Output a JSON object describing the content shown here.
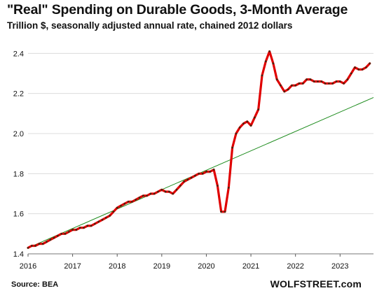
{
  "title": "\"Real\" Spending on Durable Goods, 3-Month Average",
  "subtitle": "Trillion $, seasonally adjusted annual rate, chained 2012 dollars",
  "source": "Source: BEA",
  "brand": "WOLFSTREET.com",
  "colors": {
    "series": "#e00000",
    "markers": "#3a2a10",
    "trend": "#1a8a1a",
    "grid": "#dcdcdc"
  },
  "chart_data": {
    "type": "line",
    "title": "\"Real\" Spending on Durable Goods, 3-Month Average",
    "subtitle": "Trillion $, seasonally adjusted annual rate, chained 2012 dollars",
    "xlabel": "",
    "ylabel": "",
    "xlim": [
      2016.0,
      2023.75
    ],
    "ylim": [
      1.4,
      2.45
    ],
    "x_ticks": [
      "2016",
      "2017",
      "2018",
      "2019",
      "2020",
      "2021",
      "2022",
      "2023"
    ],
    "y_ticks": [
      "1.4",
      "1.6",
      "1.8",
      "2.0",
      "2.2",
      "2.4"
    ],
    "grid": "horizontal",
    "x_start": "2016-01",
    "x_step": "month",
    "series": [
      {
        "values": [
          1.43,
          1.44,
          1.44,
          1.45,
          1.45,
          1.46,
          1.47,
          1.48,
          1.49,
          1.5,
          1.5,
          1.51,
          1.52,
          1.52,
          1.53,
          1.53,
          1.54,
          1.54,
          1.55,
          1.56,
          1.57,
          1.58,
          1.59,
          1.61,
          1.63,
          1.64,
          1.65,
          1.66,
          1.66,
          1.67,
          1.68,
          1.69,
          1.69,
          1.7,
          1.7,
          1.71,
          1.72,
          1.71,
          1.71,
          1.7,
          1.72,
          1.74,
          1.76,
          1.77,
          1.78,
          1.79,
          1.8,
          1.8,
          1.81,
          1.81,
          1.82,
          1.74,
          1.61,
          1.61,
          1.73,
          1.93,
          2.0,
          2.03,
          2.05,
          2.06,
          2.04,
          2.08,
          2.12,
          2.29,
          2.36,
          2.41,
          2.35,
          2.27,
          2.24,
          2.21,
          2.22,
          2.24,
          2.24,
          2.25,
          2.25,
          2.27,
          2.27,
          2.26,
          2.26,
          2.26,
          2.25,
          2.25,
          2.25,
          2.26,
          2.26,
          2.25,
          2.27,
          2.3,
          2.33,
          2.32,
          2.32,
          2.33,
          2.35
        ]
      },
      {
        "kind": "trend",
        "x": [
          2016.0,
          2023.75
        ],
        "y": [
          1.43,
          2.18
        ]
      }
    ]
  }
}
